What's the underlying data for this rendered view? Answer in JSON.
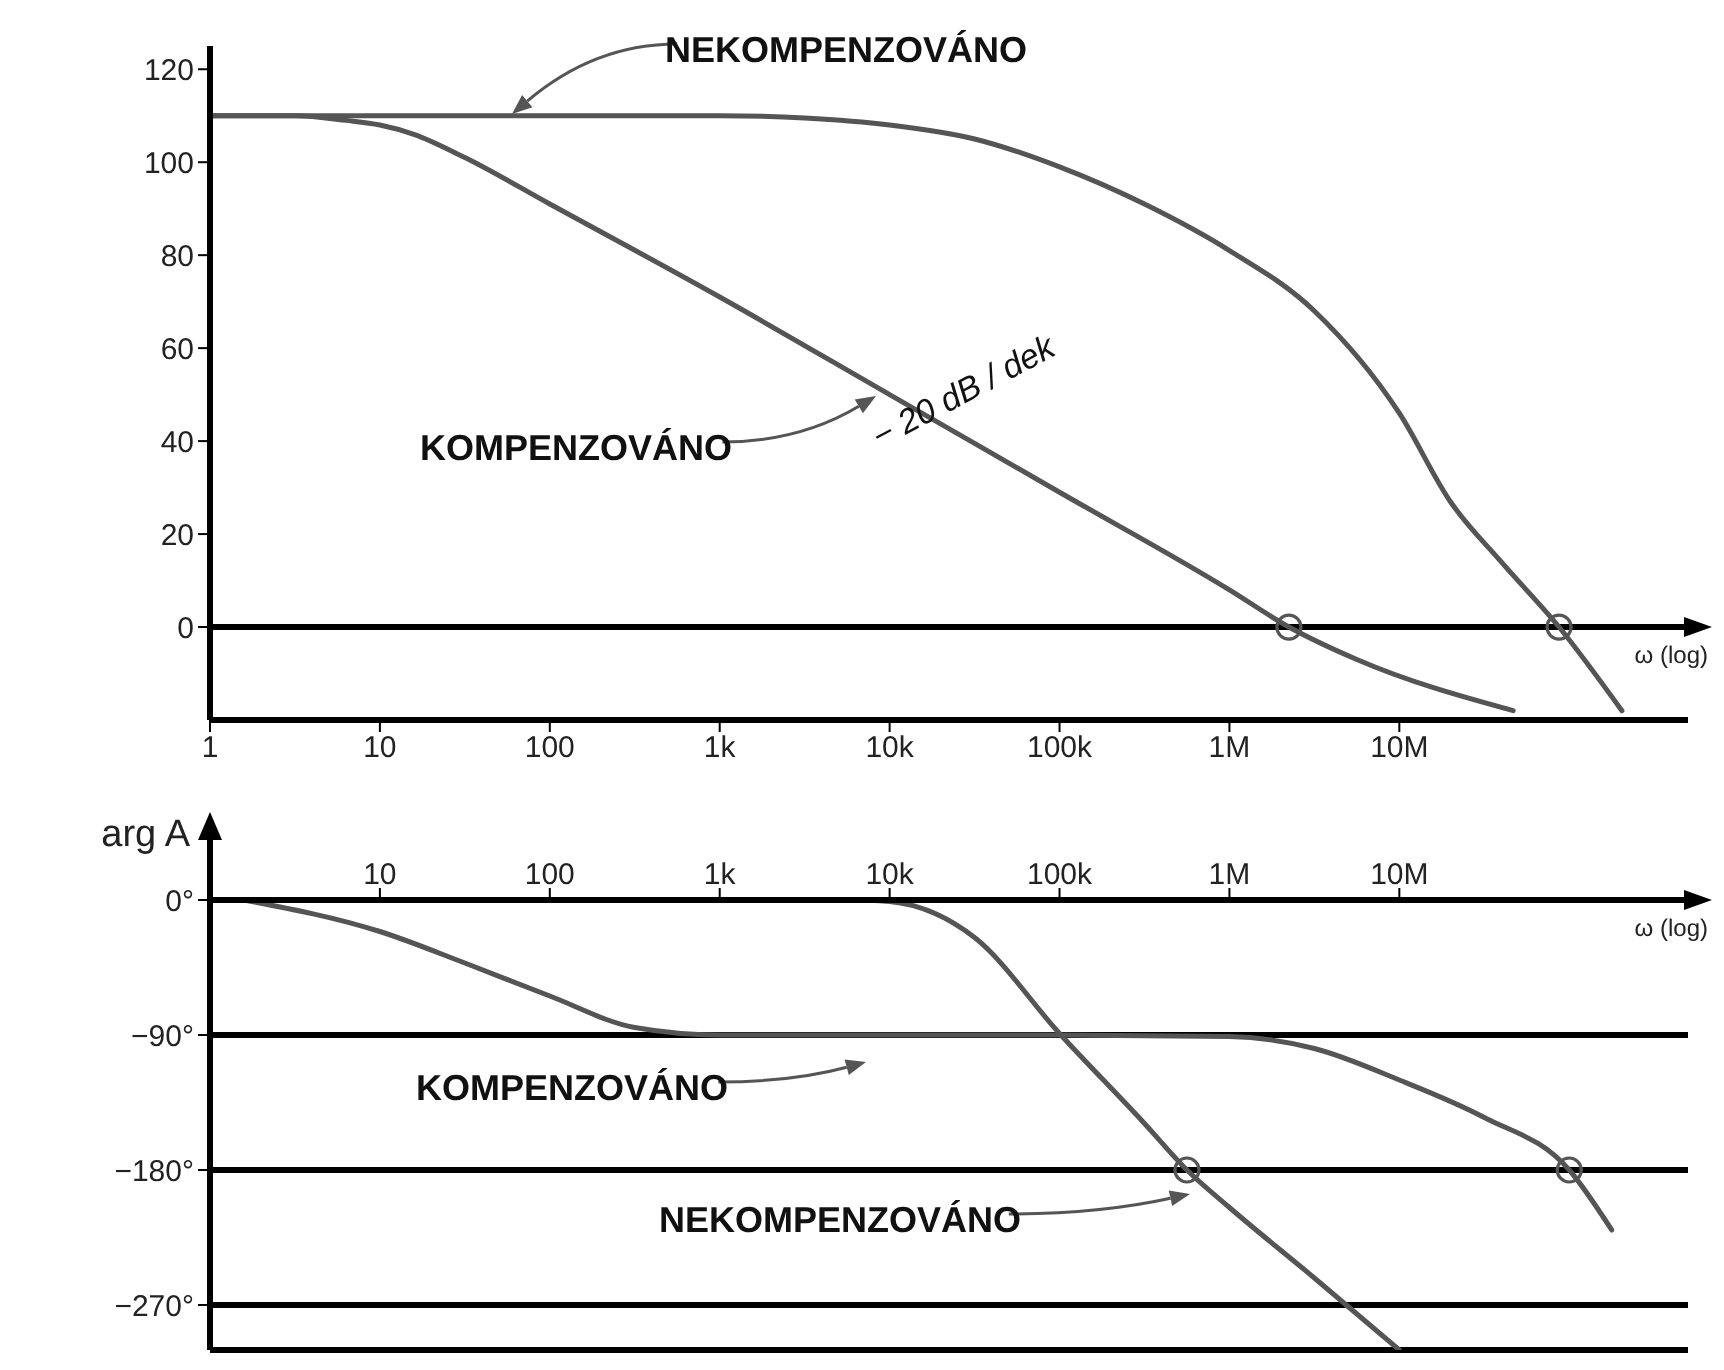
{
  "chart_data": [
    {
      "type": "line",
      "xlabel": "ω (log)",
      "log": "x",
      "xlim": [
        1,
        500000000
      ],
      "xticks": [
        1,
        10,
        100,
        {
          "value": 1000,
          "label": "1k"
        },
        {
          "value": 10000,
          "label": "10k"
        },
        {
          "value": 100000,
          "label": "100k"
        },
        {
          "value": 1000000,
          "label": "1M"
        },
        {
          "value": 10000000,
          "label": "10M"
        }
      ],
      "ylim": [
        -20,
        125
      ],
      "yticks": [
        0,
        20,
        40,
        60,
        80,
        100,
        120
      ],
      "grid": false,
      "ref_lines": [
        {
          "axis": "y",
          "value": 0,
          "color": "#000000"
        }
      ],
      "series": [
        {
          "color": "#555555",
          "x": [
            1,
            10,
            100,
            1000,
            3162,
            10000,
            31623,
            100000,
            316228,
            1000000,
            3162278,
            10000000,
            19952623,
            39810717,
            87096359,
            204173794
          ],
          "values": [
            110,
            110,
            110,
            110,
            109.5,
            108,
            105,
            99,
            91,
            81,
            68,
            46,
            27,
            14,
            0,
            -18
          ]
        },
        {
          "color": "#555555",
          "x": [
            1,
            3.162,
            6.31,
            10,
            15.85,
            31.62,
            100,
            1000,
            10000,
            100000,
            1000000,
            2238721,
            5623413,
            46773514
          ],
          "values": [
            110,
            110,
            109,
            108,
            106,
            101,
            91,
            71,
            50,
            29,
            8,
            0,
            -7,
            -18
          ]
        },
        {
          "type": "scatter",
          "marker": "circle",
          "color": "#555555",
          "x": [
            2238721,
            87096359
          ],
          "values": [
            0,
            0
          ]
        }
      ],
      "annotations": [
        "NEKOMPENZOVÁNO",
        "KOMPENZOVÁNO",
        {
          "text": "− 20 dB / dek",
          "x": 20000,
          "y": 44
        }
      ]
    },
    {
      "type": "line",
      "xlabel": "ω (log)",
      "ylabel": "arg A",
      "log": "x",
      "xlim": [
        1,
        500000000
      ],
      "xticks": [
        10,
        100,
        {
          "value": 1000,
          "label": "1k"
        },
        {
          "value": 10000,
          "label": "10k"
        },
        {
          "value": 100000,
          "label": "100k"
        },
        {
          "value": 1000000,
          "label": "1M"
        },
        {
          "value": 10000000,
          "label": "10M"
        }
      ],
      "ylim": [
        -300,
        0
      ],
      "yticks": [
        {
          "value": 0,
          "label": "0°"
        },
        {
          "value": -90,
          "label": "−90°"
        },
        {
          "value": -180,
          "label": "−180°"
        },
        {
          "value": -270,
          "label": "−270°"
        }
      ],
      "grid": "y",
      "series": [
        {
          "color": "#555555",
          "x": [
            1.585,
            10,
            31.62,
            100,
            316.2,
            1000,
            10000,
            100000,
            1000000,
            3162278,
            10000000,
            31622777,
            100000000,
            177827941
          ],
          "values": [
            0,
            -21,
            -42,
            -64,
            -85,
            -90,
            -90,
            -90,
            -91,
            -99,
            -120,
            -145,
            -180,
            -220
          ]
        },
        {
          "color": "#555555",
          "x": [
            6310,
            10000,
            31623,
            100000,
            316228,
            562341,
            1000000,
            3162278,
            10000000
          ],
          "values": [
            0,
            -1,
            -25,
            -89,
            -149,
            -180,
            -205,
            -252,
            -300
          ]
        },
        {
          "type": "scatter",
          "marker": "circle",
          "color": "#555555",
          "x": [
            562341,
            100000000
          ],
          "values": [
            -180,
            -180
          ]
        }
      ],
      "annotations": [
        "KOMPENZOVÁNO",
        "NEKOMPENZOVÁNO"
      ]
    }
  ]
}
